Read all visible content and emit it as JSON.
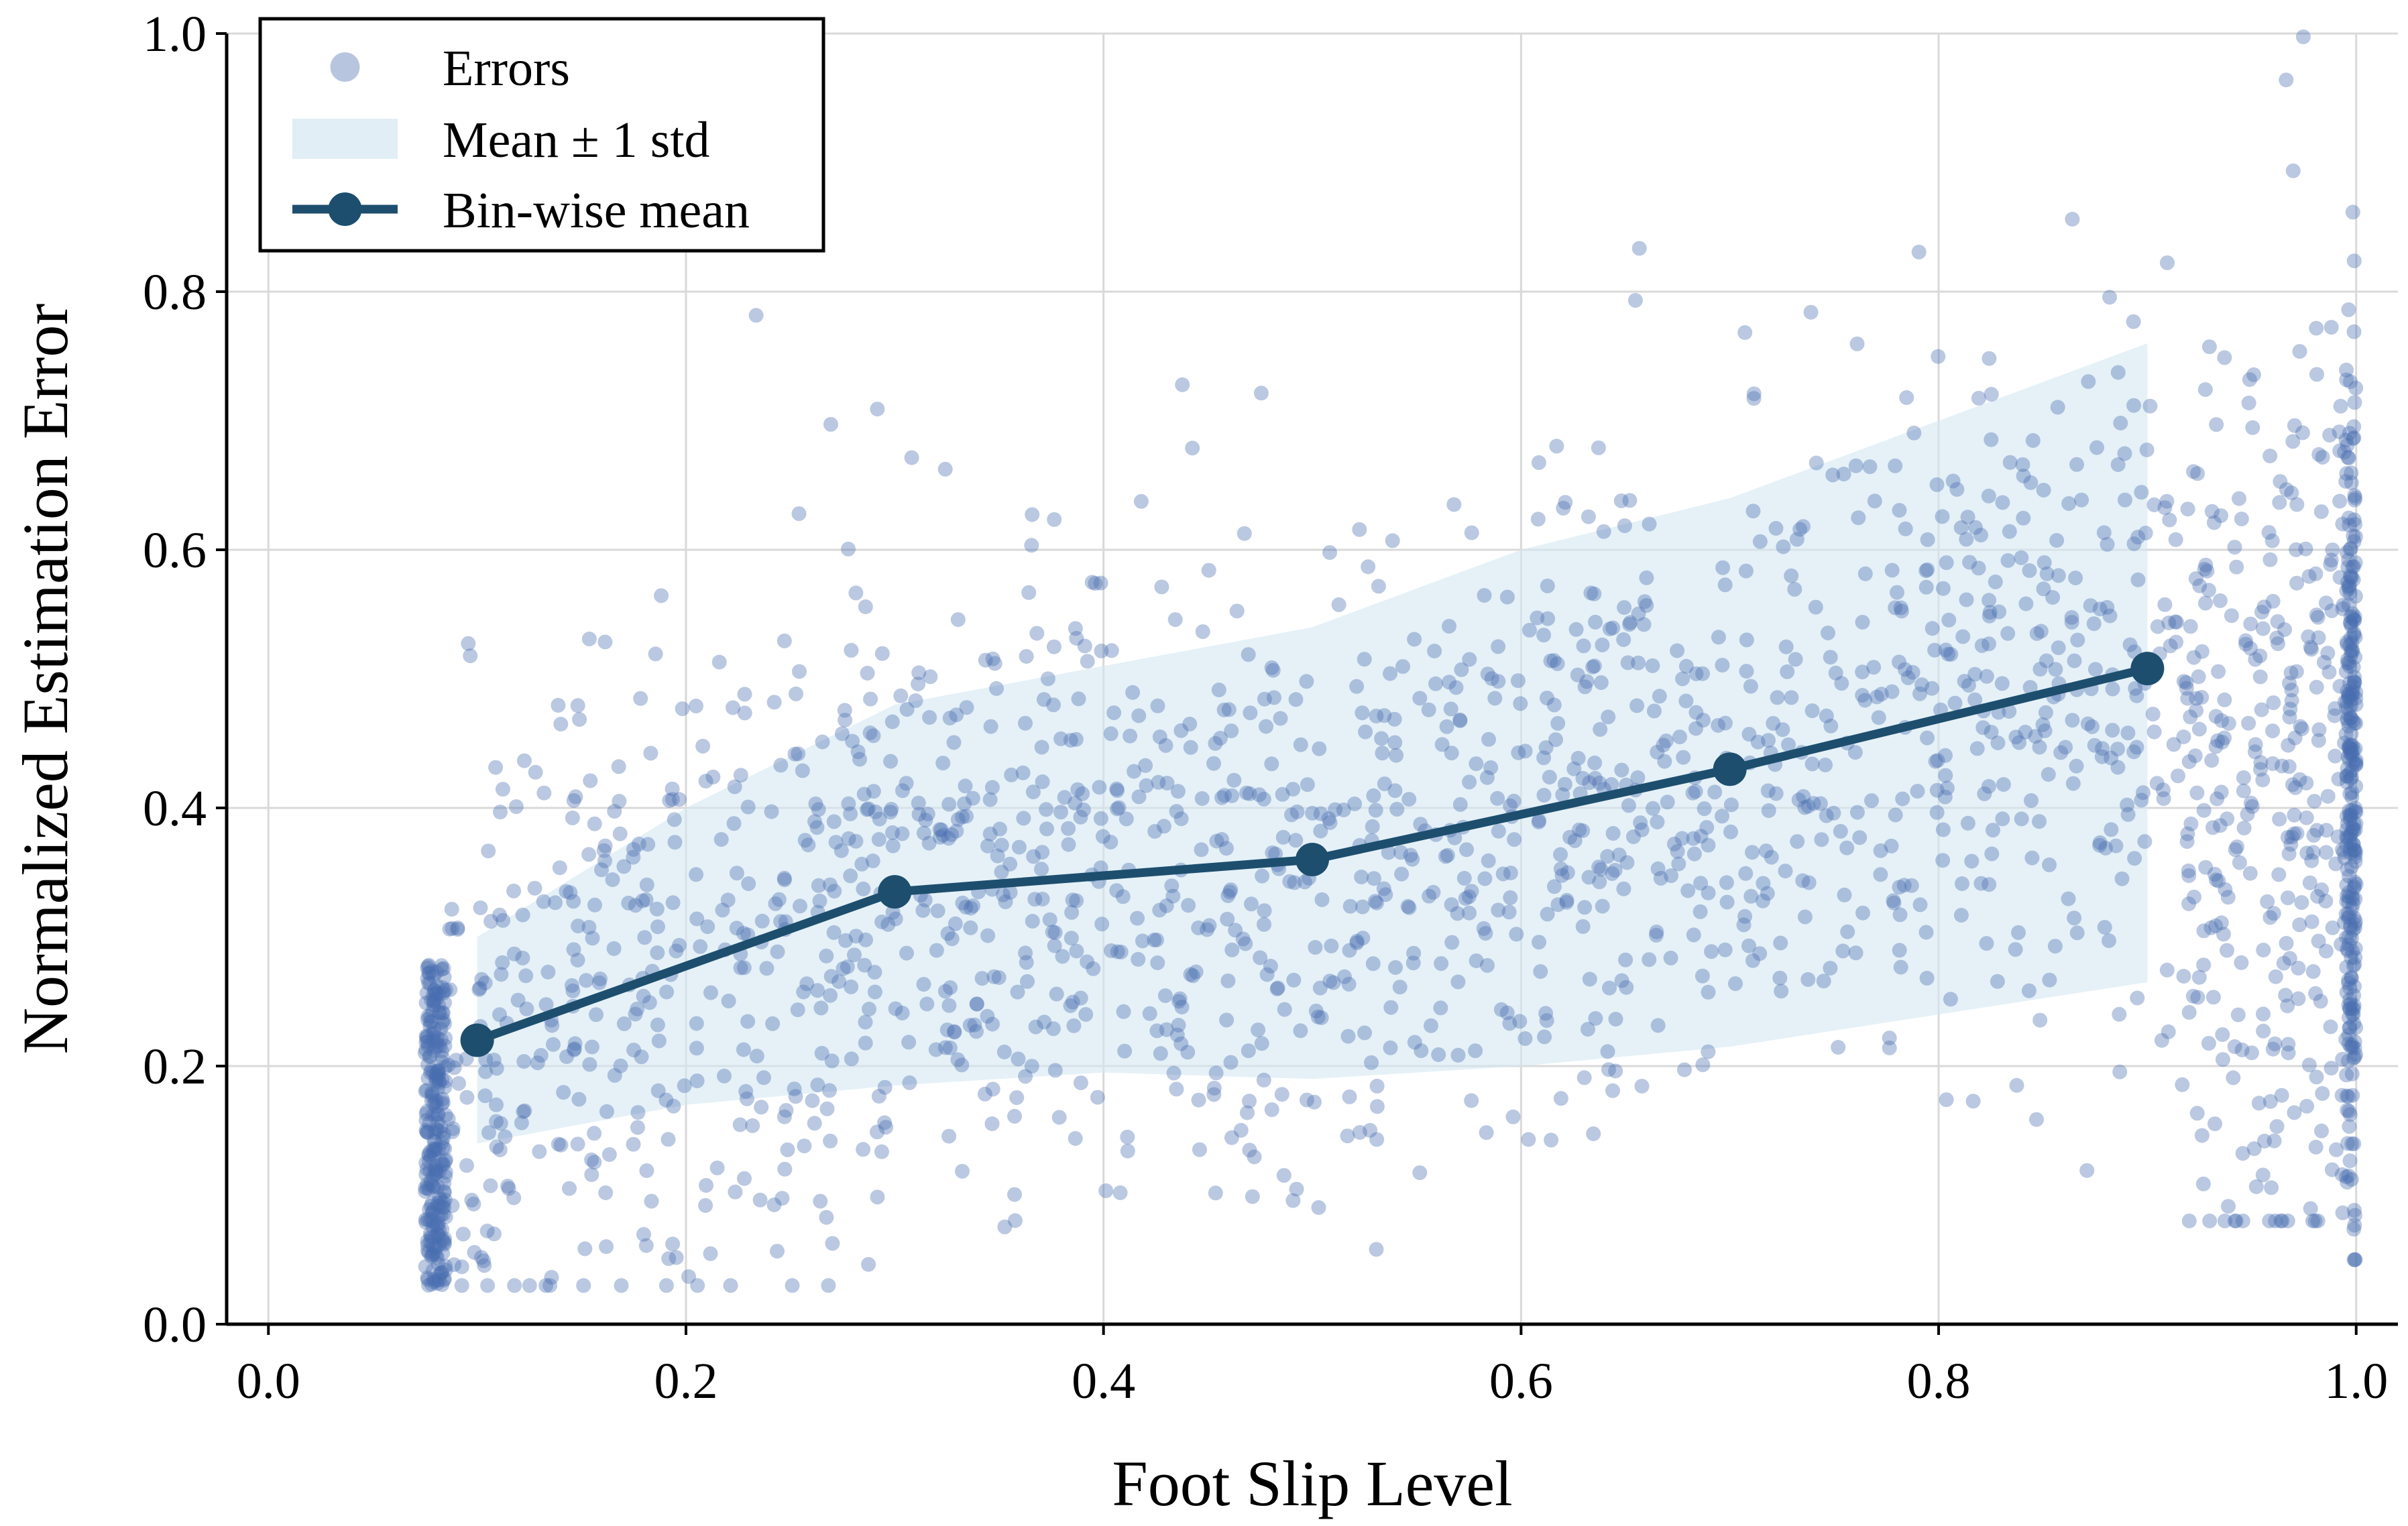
{
  "chart_data": {
    "type": "scatter",
    "title": "",
    "xlabel": "Foot Slip Level",
    "ylabel": "Normalized Estimation Error",
    "xlim": [
      -0.02,
      1.02
    ],
    "ylim": [
      0.0,
      1.0
    ],
    "xticks": [
      0.0,
      0.2,
      0.4,
      0.6,
      0.8,
      1.0
    ],
    "yticks": [
      0.0,
      0.2,
      0.4,
      0.6,
      0.8,
      1.0
    ],
    "xtick_labels": [
      "0.0",
      "0.2",
      "0.4",
      "0.6",
      "0.8",
      "1.0"
    ],
    "ytick_labels": [
      "0.0",
      "0.2",
      "0.4",
      "0.6",
      "0.8",
      "1.0"
    ],
    "grid": true,
    "legend_position": "top-left",
    "legend": [
      {
        "label": "Errors",
        "kind": "scatter"
      },
      {
        "label": "Mean ± 1 std",
        "kind": "band"
      },
      {
        "label": "Bin-wise mean",
        "kind": "line"
      }
    ],
    "colors": {
      "scatter": "#4a6fb0",
      "band": "#d4e7f1",
      "line": "#1d4e6e"
    },
    "series": [
      {
        "name": "Bin-wise mean",
        "type": "line",
        "x": [
          0.1,
          0.3,
          0.5,
          0.7,
          0.9
        ],
        "y": [
          0.22,
          0.335,
          0.36,
          0.43,
          0.508
        ]
      },
      {
        "name": "Mean ± 1 std",
        "type": "band",
        "x": [
          0.1,
          0.2,
          0.3,
          0.4,
          0.5,
          0.6,
          0.7,
          0.8,
          0.9
        ],
        "lower": [
          0.14,
          0.17,
          0.185,
          0.195,
          0.19,
          0.2,
          0.215,
          0.24,
          0.265
        ],
        "upper": [
          0.3,
          0.4,
          0.48,
          0.51,
          0.54,
          0.6,
          0.64,
          0.7,
          0.76
        ]
      },
      {
        "name": "Errors",
        "type": "scatter",
        "point_count": 2400,
        "clusters": [
          {
            "x_range": [
              0.075,
              0.085
            ],
            "y_range": [
              0.03,
              0.28
            ],
            "count": 260
          },
          {
            "x_range": [
              0.085,
              0.92
            ],
            "y_center_from": "bin-wise mean",
            "y_spread": 0.13,
            "count": 1560
          },
          {
            "x_range": [
              0.92,
              0.995
            ],
            "y_range": [
              0.08,
              1.0
            ],
            "count": 300
          },
          {
            "x_range": [
              0.995,
              1.0
            ],
            "y_range": [
              0.05,
              0.97
            ],
            "count": 280
          }
        ]
      }
    ]
  }
}
